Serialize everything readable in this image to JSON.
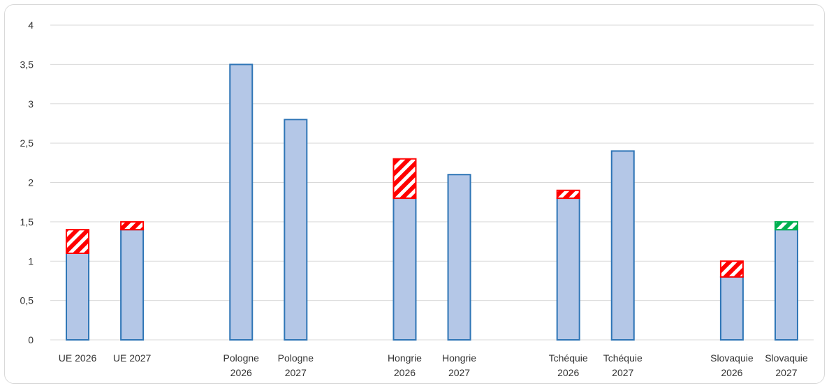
{
  "chart_data": {
    "type": "bar",
    "stacked": true,
    "title": "",
    "xlabel": "",
    "ylabel": "",
    "ylim": [
      0,
      4
    ],
    "yticks": [
      "0",
      "0,5",
      "1",
      "1,5",
      "2",
      "2,5",
      "3",
      "3,5",
      "4"
    ],
    "grid": true,
    "legend": "none",
    "colors": {
      "base_fill": "#b4c7e7",
      "base_stroke": "#2e75b6",
      "increase": "#ff0000",
      "decrease": "#00b050",
      "grid": "#d9d9d9"
    },
    "groups": [
      {
        "categories": [
          {
            "line1": "UE 2026",
            "line2": ""
          },
          {
            "line1": "UE 2027",
            "line2": ""
          }
        ]
      },
      {
        "categories": [
          {
            "line1": "Pologne",
            "line2": "2026"
          },
          {
            "line1": "Pologne",
            "line2": "2027"
          }
        ]
      },
      {
        "categories": [
          {
            "line1": "Hongrie",
            "line2": "2026"
          },
          {
            "line1": "Hongrie",
            "line2": "2027"
          }
        ]
      },
      {
        "categories": [
          {
            "line1": "Tchéquie",
            "line2": "2026"
          },
          {
            "line1": "Tchéquie",
            "line2": "2027"
          }
        ]
      },
      {
        "categories": [
          {
            "line1": "Slovaquie",
            "line2": "2026"
          },
          {
            "line1": "Slovaquie",
            "line2": "2027"
          }
        ]
      }
    ],
    "base_values": [
      1.1,
      1.4,
      3.5,
      2.8,
      1.8,
      2.1,
      1.8,
      2.4,
      0.8,
      1.4
    ],
    "hatched_values": [
      0.3,
      0.1,
      0,
      0,
      0.5,
      0,
      0.1,
      0,
      0.2,
      0.1
    ],
    "hatched_colors": [
      "increase",
      "increase",
      "",
      "",
      "increase",
      "",
      "increase",
      "",
      "increase",
      "decrease"
    ]
  }
}
